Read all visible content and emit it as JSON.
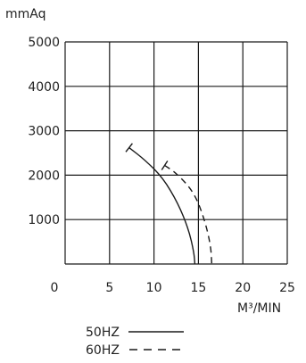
{
  "chart_data": {
    "type": "line",
    "ylabel": "mmAq",
    "xlabel": "M³/MIN",
    "xlim": [
      0,
      25
    ],
    "ylim": [
      0,
      5000
    ],
    "x_ticks": [
      "0",
      "5",
      "10",
      "15",
      "20",
      "25"
    ],
    "y_ticks": [
      "1000",
      "2000",
      "3000",
      "4000",
      "5000"
    ],
    "grid": true,
    "legend_position": "bottom",
    "series": [
      {
        "name": "50HZ",
        "style": "solid",
        "points": [
          [
            7.2,
            2620
          ],
          [
            9.0,
            2340
          ],
          [
            11.0,
            1940
          ],
          [
            12.7,
            1370
          ],
          [
            13.9,
            780
          ],
          [
            14.5,
            260
          ],
          [
            14.6,
            0
          ]
        ]
      },
      {
        "name": "60HZ",
        "style": "dashed",
        "points": [
          [
            11.2,
            2220
          ],
          [
            12.5,
            2050
          ],
          [
            14.5,
            1620
          ],
          [
            15.7,
            1000
          ],
          [
            16.4,
            400
          ],
          [
            16.5,
            0
          ]
        ]
      }
    ]
  },
  "colors": {
    "line": "#1a1a1a",
    "grid": "#1a1a1a"
  }
}
